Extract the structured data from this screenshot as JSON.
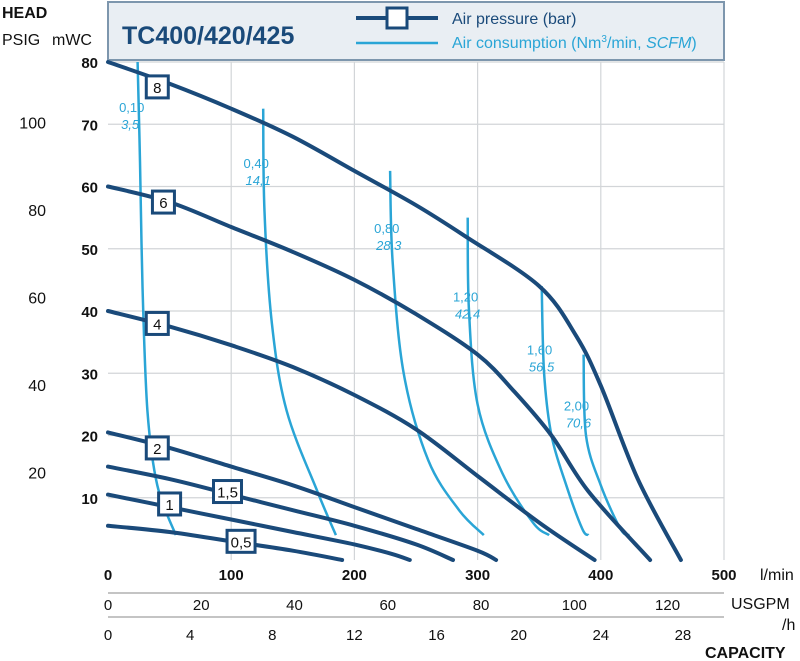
{
  "chart_data": {
    "type": "line",
    "title": "TC400/420/425",
    "legend": {
      "placement": "top-right",
      "items": [
        {
          "label": "Air pressure (bar)",
          "color": "#1a4a7a",
          "icon": "square-marker-on-line"
        },
        {
          "label_pre": "Air consumption (Nm",
          "label_sup": "3",
          "label_post": "/min, ",
          "label_italic": "SCFM",
          "label_close": ")",
          "color": "#2aa5d6"
        }
      ]
    },
    "head_label": "HEAD",
    "capacity_label": "CAPACITY",
    "axes": {
      "mwc": {
        "label": "mWC",
        "range": [
          0,
          80
        ],
        "ticks": [
          {
            "v": 10,
            "t": "10"
          },
          {
            "v": 20,
            "t": "20"
          },
          {
            "v": 30,
            "t": "30"
          },
          {
            "v": 40,
            "t": "40"
          },
          {
            "v": 50,
            "t": "50"
          },
          {
            "v": 60,
            "t": "60"
          },
          {
            "v": 70,
            "t": "70"
          },
          {
            "v": 80,
            "t": "80"
          }
        ]
      },
      "psig": {
        "label": "PSIG",
        "ticks": [
          {
            "v": 20,
            "t": "20"
          },
          {
            "v": 40,
            "t": "40"
          },
          {
            "v": 60,
            "t": "60"
          },
          {
            "v": 80,
            "t": "80"
          },
          {
            "v": 100,
            "t": "100"
          }
        ]
      },
      "lmin": {
        "label": "l/min",
        "range": [
          0,
          500
        ],
        "ticks": [
          {
            "v": 0,
            "t": "0"
          },
          {
            "v": 100,
            "t": "100"
          },
          {
            "v": 200,
            "t": "200"
          },
          {
            "v": 300,
            "t": "300"
          },
          {
            "v": 400,
            "t": "400"
          },
          {
            "v": 500,
            "t": "500"
          }
        ]
      },
      "usgpm": {
        "label": "USGPM",
        "ticks": [
          {
            "v": 0,
            "t": "0"
          },
          {
            "v": 20,
            "t": "20"
          },
          {
            "v": 40,
            "t": "40"
          },
          {
            "v": 60,
            "t": "60"
          },
          {
            "v": 80,
            "t": "80"
          },
          {
            "v": 100,
            "t": "100"
          },
          {
            "v": 120,
            "t": "120"
          }
        ]
      },
      "m3h": {
        "label": "/h",
        "ticks": [
          {
            "v": 0,
            "t": "0"
          },
          {
            "v": 4,
            "t": "4"
          },
          {
            "v": 8,
            "t": "8"
          },
          {
            "v": 12,
            "t": "12"
          },
          {
            "v": 16,
            "t": "16"
          },
          {
            "v": 20,
            "t": "20"
          },
          {
            "v": 24,
            "t": "24"
          },
          {
            "v": 28,
            "t": "28"
          }
        ]
      }
    },
    "grid": true,
    "pressure_series": [
      {
        "name": "8",
        "points": [
          [
            0,
            80
          ],
          [
            50,
            76.5
          ],
          [
            100,
            72.5
          ],
          [
            150,
            68
          ],
          [
            200,
            62.5
          ],
          [
            250,
            57
          ],
          [
            290,
            52
          ],
          [
            350,
            44
          ],
          [
            380,
            36
          ],
          [
            400,
            28
          ],
          [
            430,
            13
          ],
          [
            465,
            0
          ]
        ],
        "label_at": [
          40,
          76
        ]
      },
      {
        "name": "6",
        "points": [
          [
            0,
            60
          ],
          [
            50,
            57.5
          ],
          [
            100,
            53.5
          ],
          [
            150,
            49.5
          ],
          [
            200,
            45
          ],
          [
            250,
            39.5
          ],
          [
            300,
            33
          ],
          [
            330,
            27
          ],
          [
            360,
            20
          ],
          [
            390,
            11
          ],
          [
            440,
            0
          ]
        ],
        "label_at": [
          45,
          57.5
        ]
      },
      {
        "name": "4",
        "points": [
          [
            0,
            40
          ],
          [
            50,
            37.5
          ],
          [
            100,
            34.5
          ],
          [
            150,
            31
          ],
          [
            200,
            26.5
          ],
          [
            250,
            21
          ],
          [
            300,
            13.5
          ],
          [
            350,
            6
          ],
          [
            395,
            0
          ]
        ],
        "label_at": [
          40,
          38
        ]
      },
      {
        "name": "2",
        "points": [
          [
            0,
            20.5
          ],
          [
            50,
            18
          ],
          [
            100,
            15
          ],
          [
            150,
            12
          ],
          [
            200,
            8.5
          ],
          [
            250,
            5
          ],
          [
            300,
            1.5
          ],
          [
            315,
            0
          ]
        ],
        "label_at": [
          40,
          18
        ]
      },
      {
        "name": "1,5",
        "points": [
          [
            0,
            15
          ],
          [
            50,
            13
          ],
          [
            100,
            10.5
          ],
          [
            150,
            8
          ],
          [
            200,
            5.5
          ],
          [
            250,
            2.5
          ],
          [
            280,
            0
          ]
        ],
        "label_at": [
          97,
          11
        ]
      },
      {
        "name": "1",
        "points": [
          [
            0,
            10.5
          ],
          [
            50,
            8.5
          ],
          [
            100,
            6.5
          ],
          [
            150,
            4.5
          ],
          [
            200,
            2.5
          ],
          [
            230,
            1
          ],
          [
            245,
            0
          ]
        ],
        "label_at": [
          50,
          9
        ]
      },
      {
        "name": "0,5",
        "points": [
          [
            0,
            5.5
          ],
          [
            50,
            4.5
          ],
          [
            100,
            3
          ],
          [
            150,
            1.5
          ],
          [
            190,
            0
          ]
        ],
        "label_at": [
          108,
          3
        ]
      }
    ],
    "consumption_series": [
      {
        "nm3": "0,10",
        "scfm": "3,5",
        "points": [
          [
            24,
            80
          ],
          [
            26,
            64
          ],
          [
            28,
            44
          ],
          [
            32,
            24
          ],
          [
            40,
            12
          ],
          [
            55,
            4
          ]
        ],
        "label_at": [
          9,
          72
        ]
      },
      {
        "nm3": "0,40",
        "scfm": "14,1",
        "points": [
          [
            126,
            72.5
          ],
          [
            127,
            56
          ],
          [
            133,
            38
          ],
          [
            145,
            24
          ],
          [
            170,
            11
          ],
          [
            185,
            4
          ]
        ],
        "label_at": [
          110,
          63
        ]
      },
      {
        "nm3": "0,80",
        "scfm": "28,3",
        "points": [
          [
            229,
            62.5
          ],
          [
            231,
            48
          ],
          [
            240,
            30
          ],
          [
            260,
            16
          ],
          [
            285,
            8
          ],
          [
            305,
            4
          ]
        ],
        "label_at": [
          216,
          52.5
        ]
      },
      {
        "nm3": "1,20",
        "scfm": "42,4",
        "points": [
          [
            292,
            55
          ],
          [
            293,
            40
          ],
          [
            300,
            25
          ],
          [
            320,
            14
          ],
          [
            345,
            6
          ],
          [
            358,
            4
          ]
        ],
        "label_at": [
          280,
          41.5
        ]
      },
      {
        "nm3": "1,60",
        "scfm": "56,5",
        "points": [
          [
            352,
            44
          ],
          [
            354,
            30
          ],
          [
            360,
            20
          ],
          [
            372,
            12
          ],
          [
            385,
            5
          ],
          [
            390,
            4
          ]
        ],
        "label_at": [
          340,
          33
        ]
      },
      {
        "nm3": "2,00",
        "scfm": "70,6",
        "points": [
          [
            386,
            33
          ],
          [
            388,
            20
          ],
          [
            400,
            12
          ],
          [
            416,
            5
          ],
          [
            423,
            4
          ]
        ],
        "label_at": [
          370,
          24
        ]
      }
    ]
  }
}
